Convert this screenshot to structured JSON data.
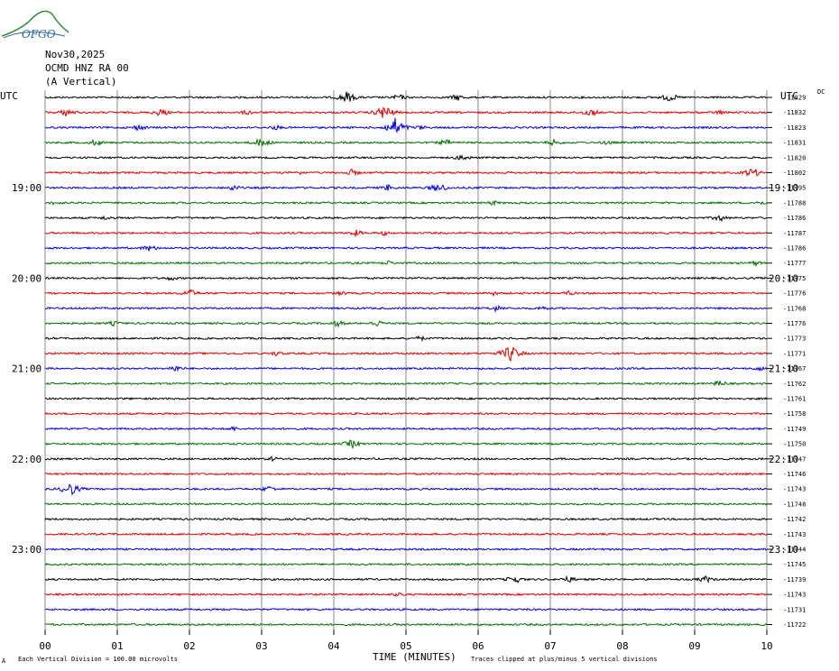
{
  "header": {
    "date": "Nov30,2025",
    "station": "OCMD HNZ RA 00",
    "component": "(A Vertical)"
  },
  "logo": {
    "text": "OFGO",
    "color": "#2a6aa0",
    "arc_color": "#3a8a3a"
  },
  "chart_data": {
    "type": "line",
    "title": "",
    "xlabel": "TIME (MINUTES)",
    "x_ticks": [
      "00",
      "01",
      "02",
      "03",
      "04",
      "05",
      "06",
      "07",
      "08",
      "09",
      "10"
    ],
    "xlim": [
      0,
      10
    ],
    "left_axis_label": "UTC",
    "right_axis_label": "UTC",
    "left_hour_labels": [
      {
        "row": 6,
        "text": "19:00"
      },
      {
        "row": 12,
        "text": "20:00"
      },
      {
        "row": 18,
        "text": "21:00"
      },
      {
        "row": 24,
        "text": "22:00"
      },
      {
        "row": 30,
        "text": "23:00"
      }
    ],
    "right_hour_labels": [
      {
        "row": 6,
        "text": "19:10"
      },
      {
        "row": 12,
        "text": "20:10"
      },
      {
        "row": 18,
        "text": "21:10"
      },
      {
        "row": 24,
        "text": "22:10"
      },
      {
        "row": 30,
        "text": "23:10"
      }
    ],
    "dc_label": "DC",
    "trace_colors": [
      "#000000",
      "#e00000",
      "#0000e0",
      "#007000"
    ],
    "trace_offsets": [
      -11829,
      -11832,
      -11823,
      -11831,
      -11820,
      -11802,
      -11795,
      -11788,
      -11786,
      -11787,
      -11786,
      -11777,
      -11775,
      -11776,
      -11768,
      -11776,
      -11773,
      -11771,
      -11767,
      -11762,
      -11761,
      -11758,
      -11749,
      -11750,
      -11747,
      -11746,
      -11743,
      -11748,
      -11742,
      -11743,
      -11744,
      -11745,
      -11739,
      -11743,
      -11731,
      -11722
    ],
    "events": [
      {
        "row": 0,
        "t": 4.18,
        "a": 7
      },
      {
        "row": 0,
        "t": 4.9,
        "a": 4
      },
      {
        "row": 0,
        "t": 5.72,
        "a": 4
      },
      {
        "row": 0,
        "t": 8.65,
        "a": 5
      },
      {
        "row": 1,
        "t": 0.3,
        "a": 5
      },
      {
        "row": 1,
        "t": 1.6,
        "a": 5
      },
      {
        "row": 1,
        "t": 2.8,
        "a": 3
      },
      {
        "row": 1,
        "t": 4.7,
        "a": 9
      },
      {
        "row": 1,
        "t": 7.55,
        "a": 5
      },
      {
        "row": 1,
        "t": 9.35,
        "a": 3
      },
      {
        "row": 2,
        "t": 1.3,
        "a": 4
      },
      {
        "row": 2,
        "t": 3.2,
        "a": 3
      },
      {
        "row": 2,
        "t": 4.85,
        "a": 11
      },
      {
        "row": 2,
        "t": 5.2,
        "a": 3
      },
      {
        "row": 3,
        "t": 0.7,
        "a": 4
      },
      {
        "row": 3,
        "t": 3.0,
        "a": 6
      },
      {
        "row": 3,
        "t": 5.55,
        "a": 4
      },
      {
        "row": 3,
        "t": 7.05,
        "a": 4
      },
      {
        "row": 3,
        "t": 7.8,
        "a": 3
      },
      {
        "row": 4,
        "t": 5.78,
        "a": 4
      },
      {
        "row": 5,
        "t": 3.5,
        "a": 3
      },
      {
        "row": 5,
        "t": 4.25,
        "a": 4
      },
      {
        "row": 5,
        "t": 9.8,
        "a": 6
      },
      {
        "row": 6,
        "t": 2.6,
        "a": 4
      },
      {
        "row": 6,
        "t": 4.75,
        "a": 4
      },
      {
        "row": 6,
        "t": 5.45,
        "a": 6
      },
      {
        "row": 7,
        "t": 0.15,
        "a": 3
      },
      {
        "row": 7,
        "t": 6.2,
        "a": 3
      },
      {
        "row": 7,
        "t": 9.9,
        "a": 3
      },
      {
        "row": 8,
        "t": 0.85,
        "a": 3
      },
      {
        "row": 8,
        "t": 9.35,
        "a": 4
      },
      {
        "row": 9,
        "t": 4.3,
        "a": 4
      },
      {
        "row": 9,
        "t": 4.7,
        "a": 3
      },
      {
        "row": 10,
        "t": 1.45,
        "a": 4
      },
      {
        "row": 11,
        "t": 4.75,
        "a": 3
      },
      {
        "row": 11,
        "t": 9.85,
        "a": 3
      },
      {
        "row": 12,
        "t": 1.75,
        "a": 3
      },
      {
        "row": 13,
        "t": 2.0,
        "a": 5
      },
      {
        "row": 13,
        "t": 4.1,
        "a": 3
      },
      {
        "row": 13,
        "t": 6.2,
        "a": 3
      },
      {
        "row": 13,
        "t": 7.25,
        "a": 3
      },
      {
        "row": 14,
        "t": 6.25,
        "a": 4
      },
      {
        "row": 14,
        "t": 6.9,
        "a": 3
      },
      {
        "row": 15,
        "t": 0.95,
        "a": 3
      },
      {
        "row": 15,
        "t": 4.05,
        "a": 4
      },
      {
        "row": 15,
        "t": 4.6,
        "a": 4
      },
      {
        "row": 16,
        "t": 5.2,
        "a": 3
      },
      {
        "row": 17,
        "t": 3.2,
        "a": 3
      },
      {
        "row": 17,
        "t": 6.45,
        "a": 10
      },
      {
        "row": 18,
        "t": 1.8,
        "a": 4
      },
      {
        "row": 18,
        "t": 9.9,
        "a": 3
      },
      {
        "row": 19,
        "t": 9.35,
        "a": 4
      },
      {
        "row": 22,
        "t": 2.6,
        "a": 3
      },
      {
        "row": 23,
        "t": 4.25,
        "a": 5
      },
      {
        "row": 24,
        "t": 3.15,
        "a": 3
      },
      {
        "row": 26,
        "t": 0.35,
        "a": 8
      },
      {
        "row": 26,
        "t": 3.1,
        "a": 4
      },
      {
        "row": 32,
        "t": 6.5,
        "a": 5
      },
      {
        "row": 32,
        "t": 7.25,
        "a": 4
      },
      {
        "row": 32,
        "t": 9.15,
        "a": 4
      },
      {
        "row": 33,
        "t": 4.9,
        "a": 3
      }
    ],
    "footer_left": "Each Vertical Division =  100.00 microvolts",
    "footer_right": "Traces clipped at plus/minus 5 vertical divisions",
    "footer_mark": "A"
  }
}
